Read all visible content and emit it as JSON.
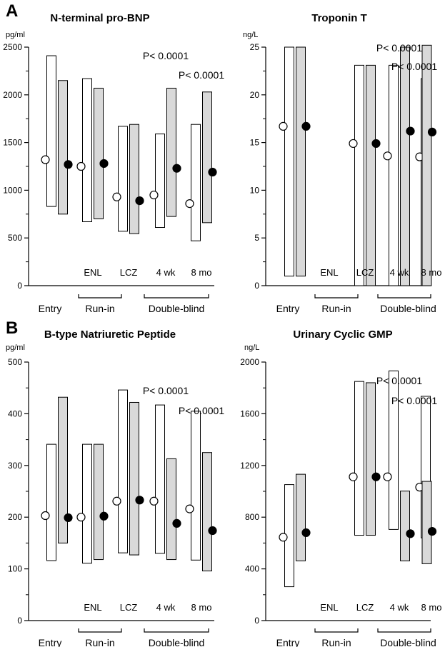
{
  "panels": {
    "a": "A",
    "b": "B"
  },
  "colors": {
    "open_bar": "#ffffff",
    "filled_bar": "#d9d9d9",
    "stroke": "#000000",
    "filled_marker": "#000000",
    "open_marker": "#ffffff"
  },
  "chart_data": [
    {
      "type": "box",
      "title": "N-terminal pro-BNP",
      "unit": "pg/ml",
      "ylim": [
        0,
        2500
      ],
      "yticks": [
        0,
        500,
        1000,
        1500,
        2000,
        2500
      ],
      "groups": [
        "Entry",
        "Run-in",
        "Double-blind"
      ],
      "categories": [
        "Entry",
        "ENL",
        "LCZ",
        "4 wk",
        "8 mo"
      ],
      "category_labels": [
        "",
        "ENL",
        "LCZ",
        "4 wk",
        "8 mo"
      ],
      "series": [
        {
          "marker": "open",
          "low": [
            830,
            670,
            570,
            610,
            470
          ],
          "high": [
            2410,
            2170,
            1670,
            1590,
            1690
          ],
          "median": [
            1320,
            1250,
            930,
            950,
            860
          ]
        },
        {
          "marker": "filled",
          "low": [
            750,
            700,
            545,
            725,
            660
          ],
          "high": [
            2150,
            2070,
            1690,
            2070,
            2030
          ],
          "median": [
            1270,
            1280,
            890,
            1230,
            1190
          ]
        }
      ],
      "annotations": [
        {
          "text": "P< 0.0001",
          "category": "4 wk"
        },
        {
          "text": "P< 0.0001",
          "category": "8 mo"
        }
      ]
    },
    {
      "type": "box",
      "title": "Troponin T",
      "unit": "ng/L",
      "ylim": [
        0,
        25
      ],
      "yticks": [
        0,
        5,
        10,
        15,
        20,
        25
      ],
      "groups": [
        "Entry",
        "Run-in",
        "Double-blind"
      ],
      "categories": [
        "Entry",
        "ENL",
        "LCZ",
        "4 wk",
        "8 mo"
      ],
      "category_labels": [
        "",
        "ENL",
        "LCZ",
        "4 wk",
        "8 mo"
      ],
      "series": [
        {
          "marker": "open",
          "low": [
            1,
            null,
            0,
            0,
            0
          ],
          "high": [
            25,
            null,
            23.1,
            23.1,
            21.7
          ],
          "median": [
            16.7,
            null,
            14.9,
            13.6,
            13.5
          ]
        },
        {
          "marker": "filled",
          "low": [
            1,
            null,
            0,
            0,
            0
          ],
          "high": [
            25,
            null,
            23.1,
            25,
            25.2
          ],
          "median": [
            16.7,
            null,
            14.9,
            16.2,
            16.1
          ]
        }
      ],
      "annotations": [
        {
          "text": "P< 0.0001",
          "category": "4 wk"
        },
        {
          "text": "P< 0.0001",
          "category": "8 mo"
        }
      ]
    },
    {
      "type": "box",
      "title": "B-type Natriuretic Peptide",
      "unit": "pg/ml",
      "ylim": [
        0,
        500
      ],
      "yticks": [
        0,
        100,
        200,
        300,
        400,
        500
      ],
      "groups": [
        "Entry",
        "Run-in",
        "Double-blind"
      ],
      "categories": [
        "Entry",
        "ENL",
        "LCZ",
        "4 wk",
        "8 mo"
      ],
      "category_labels": [
        "",
        "ENL",
        "LCZ",
        "4 wk",
        "8 mo"
      ],
      "series": [
        {
          "marker": "open",
          "low": [
            116,
            111,
            131,
            130,
            117
          ],
          "high": [
            341,
            341,
            446,
            417,
            405
          ],
          "median": [
            203,
            200,
            231,
            231,
            216
          ]
        },
        {
          "marker": "filled",
          "low": [
            150,
            118,
            127,
            118,
            96
          ],
          "high": [
            432,
            341,
            422,
            313,
            325
          ],
          "median": [
            199,
            202,
            233,
            188,
            174
          ]
        }
      ],
      "annotations": [
        {
          "text": "P< 0.0001",
          "category": "4 wk"
        },
        {
          "text": "P< 0.0001",
          "category": "8 mo"
        }
      ]
    },
    {
      "type": "box",
      "title": "Urinary Cyclic GMP",
      "unit": "ng/L",
      "ylim": [
        0,
        2000
      ],
      "yticks": [
        0,
        400,
        800,
        1200,
        1600,
        2000
      ],
      "groups": [
        "Entry",
        "Run-in",
        "Double-blind"
      ],
      "categories": [
        "Entry",
        "ENL",
        "LCZ",
        "4 wk",
        "8 mo"
      ],
      "category_labels": [
        "",
        "ENL",
        "LCZ",
        "4 wk",
        "8 mo"
      ],
      "series": [
        {
          "marker": "open",
          "low": [
            262,
            null,
            660,
            705,
            640
          ],
          "high": [
            1052,
            null,
            1850,
            1932,
            1735
          ],
          "median": [
            645,
            null,
            1112,
            1112,
            1032
          ]
        },
        {
          "marker": "filled",
          "low": [
            462,
            null,
            660,
            462,
            440
          ],
          "high": [
            1132,
            null,
            1840,
            1002,
            1077
          ],
          "median": [
            680,
            null,
            1112,
            672,
            690
          ]
        }
      ],
      "annotations": [
        {
          "text": "P< 0.0001",
          "category": "4 wk"
        },
        {
          "text": "P< 0.0001",
          "category": "8 mo"
        }
      ]
    }
  ]
}
